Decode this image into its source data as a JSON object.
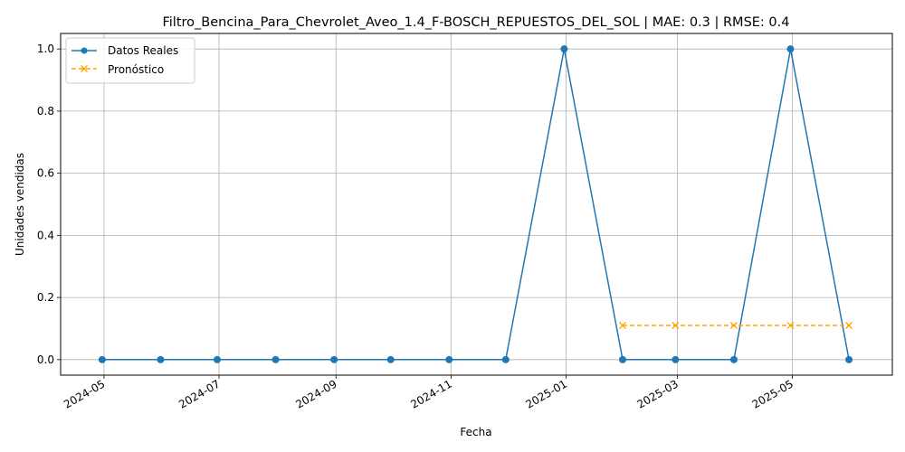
{
  "chart_data": {
    "type": "line",
    "title": "Filtro_Bencina_Para_Chevrolet_Aveo_1.4_F-BOSCH_REPUESTOS_DEL_SOL | MAE: 0.3 | RMSE: 0.4",
    "xlabel": "Fecha",
    "ylabel": "Unidades vendidas",
    "xlim": [
      "2024-04-08",
      "2025-06-23"
    ],
    "ylim": [
      -0.05,
      1.05
    ],
    "x_ticks": [
      "2024-05-01",
      "2024-07-01",
      "2024-09-01",
      "2024-11-01",
      "2025-01-01",
      "2025-03-01",
      "2025-05-01"
    ],
    "x_tick_labels": [
      "2024-05",
      "2024-07",
      "2024-09",
      "2024-11",
      "2025-01",
      "2025-03",
      "2025-05"
    ],
    "y_ticks": [
      0.0,
      0.2,
      0.4,
      0.6,
      0.8,
      1.0
    ],
    "y_tick_labels": [
      "0.0",
      "0.2",
      "0.4",
      "0.6",
      "0.8",
      "1.0"
    ],
    "grid": true,
    "legend_position": "top-left",
    "series": [
      {
        "name": "Datos Reales",
        "color": "#1f77b4",
        "marker": "circle",
        "line_style": "solid",
        "points": [
          {
            "x": "2024-04-30",
            "y": 0
          },
          {
            "x": "2024-05-31",
            "y": 0
          },
          {
            "x": "2024-06-30",
            "y": 0
          },
          {
            "x": "2024-07-31",
            "y": 0
          },
          {
            "x": "2024-08-31",
            "y": 0
          },
          {
            "x": "2024-09-30",
            "y": 0
          },
          {
            "x": "2024-10-31",
            "y": 0
          },
          {
            "x": "2024-11-30",
            "y": 0
          },
          {
            "x": "2024-12-31",
            "y": 1
          },
          {
            "x": "2025-01-31",
            "y": 0
          },
          {
            "x": "2025-02-28",
            "y": 0
          },
          {
            "x": "2025-03-31",
            "y": 0
          },
          {
            "x": "2025-04-30",
            "y": 1
          },
          {
            "x": "2025-05-31",
            "y": 0
          }
        ]
      },
      {
        "name": "Pronóstico",
        "color": "#ffa500",
        "marker": "x",
        "line_style": "dashed",
        "points": [
          {
            "x": "2025-01-31",
            "y": 0.11
          },
          {
            "x": "2025-02-28",
            "y": 0.11
          },
          {
            "x": "2025-03-31",
            "y": 0.11
          },
          {
            "x": "2025-04-30",
            "y": 0.11
          },
          {
            "x": "2025-05-31",
            "y": 0.11
          }
        ]
      }
    ]
  }
}
